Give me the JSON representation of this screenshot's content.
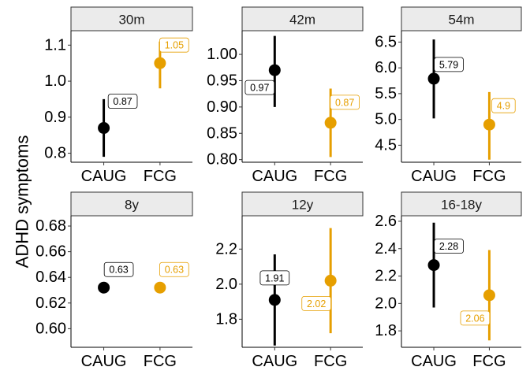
{
  "chart_data": {
    "type": "scatter",
    "ylabel": "ADHD symptoms",
    "xlabel": "",
    "categories": [
      "CAUG",
      "FCG"
    ],
    "colors": {
      "CAUG": "#000000",
      "FCG": "#E69F00"
    },
    "strip_background": "#EBEBEB",
    "grid": false,
    "panels": [
      {
        "title": "30m",
        "ylim": [
          0.775,
          1.14
        ],
        "yticks": [
          0.8,
          0.9,
          1.0,
          1.1
        ],
        "yticklabels": [
          "0.8",
          "0.9",
          "1.0",
          "1.1"
        ],
        "points": [
          {
            "group": "CAUG",
            "value": 0.87,
            "lower": 0.79,
            "upper": 0.95,
            "label": "0.87"
          },
          {
            "group": "FCG",
            "value": 1.05,
            "lower": 0.98,
            "upper": 1.11,
            "label": "1.05"
          }
        ]
      },
      {
        "title": "42m",
        "ylim": [
          0.795,
          1.045
        ],
        "yticks": [
          0.8,
          0.85,
          0.9,
          0.95,
          1.0
        ],
        "yticklabels": [
          "0.80",
          "0.85",
          "0.90",
          "0.95",
          "1.00"
        ],
        "points": [
          {
            "group": "CAUG",
            "value": 0.97,
            "lower": 0.9,
            "upper": 1.035,
            "label": "0.97"
          },
          {
            "group": "FCG",
            "value": 0.87,
            "lower": 0.805,
            "upper": 0.935,
            "label": "0.87"
          }
        ]
      },
      {
        "title": "54m",
        "ylim": [
          4.17,
          6.72
        ],
        "yticks": [
          4.5,
          5.0,
          5.5,
          6.0,
          6.5
        ],
        "yticklabels": [
          "4.5",
          "5.0",
          "5.5",
          "6.0",
          "6.5"
        ],
        "points": [
          {
            "group": "CAUG",
            "value": 5.79,
            "lower": 5.02,
            "upper": 6.55,
            "label": "5.79"
          },
          {
            "group": "FCG",
            "value": 4.9,
            "lower": 4.22,
            "upper": 5.53,
            "label": "4.9"
          }
        ]
      },
      {
        "title": "8y",
        "ylim": [
          0.5855,
          0.688
        ],
        "yticks": [
          0.6,
          0.62,
          0.64,
          0.66,
          0.68
        ],
        "yticklabels": [
          "0.60",
          "0.62",
          "0.64",
          "0.66",
          "0.68"
        ],
        "points": [
          {
            "group": "CAUG",
            "value": 0.632,
            "lower": 0.632,
            "upper": 0.632,
            "label": "0.63"
          },
          {
            "group": "FCG",
            "value": 0.632,
            "lower": 0.632,
            "upper": 0.632,
            "label": "0.63"
          }
        ]
      },
      {
        "title": "12y",
        "ylim": [
          1.64,
          2.39
        ],
        "yticks": [
          1.8,
          2.0,
          2.2
        ],
        "yticklabels": [
          "1.8",
          "2.0",
          "2.2"
        ],
        "points": [
          {
            "group": "CAUG",
            "value": 1.91,
            "lower": 1.65,
            "upper": 2.17,
            "label": "1.91"
          },
          {
            "group": "FCG",
            "value": 2.02,
            "lower": 1.72,
            "upper": 2.32,
            "label": "2.02"
          }
        ]
      },
      {
        "title": "16-18y",
        "ylim": [
          1.68,
          2.64
        ],
        "yticks": [
          1.8,
          2.0,
          2.2,
          2.4,
          2.6
        ],
        "yticklabels": [
          "1.8",
          "2.0",
          "2.2",
          "2.4",
          "2.6"
        ],
        "points": [
          {
            "group": "CAUG",
            "value": 2.28,
            "lower": 1.97,
            "upper": 2.59,
            "label": "2.28"
          },
          {
            "group": "FCG",
            "value": 2.06,
            "lower": 1.73,
            "upper": 2.39,
            "label": "2.06"
          }
        ]
      }
    ]
  }
}
